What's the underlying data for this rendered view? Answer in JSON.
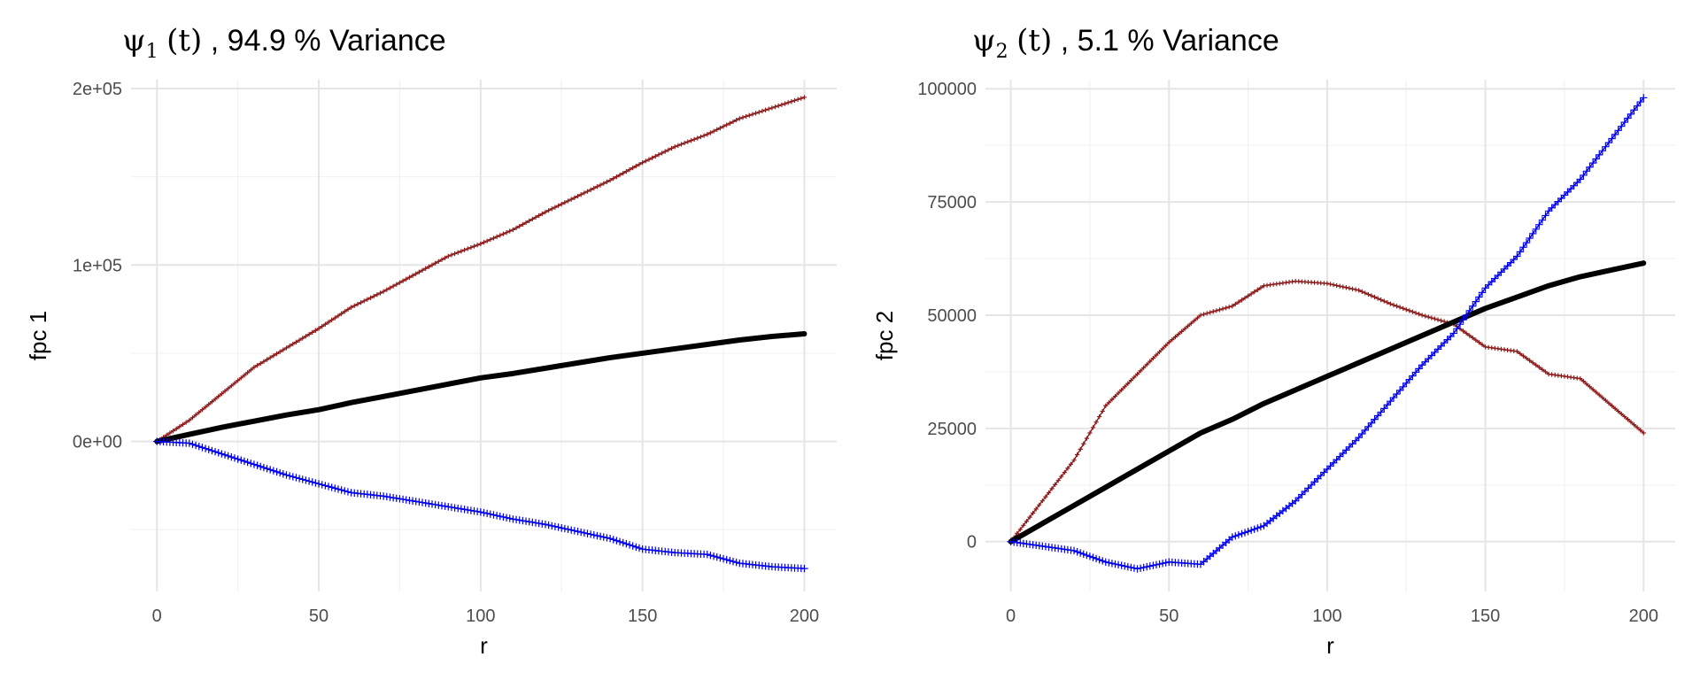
{
  "chart_data": [
    {
      "type": "line",
      "title": {
        "symbol": "ψ",
        "subscript": "1",
        "arg": "(t)",
        "suffix": ", 94.9 % Variance"
      },
      "xlabel": "r",
      "ylabel": "fpc 1",
      "xlim": [
        -8,
        210
      ],
      "ylim": [
        -85000,
        205000
      ],
      "x_ticks": [
        0,
        50,
        100,
        150,
        200
      ],
      "x_tick_labels": [
        "0",
        "50",
        "100",
        "150",
        "200"
      ],
      "y_ticks": [
        0,
        100000,
        200000
      ],
      "y_tick_labels": [
        "0e+00",
        "1e+05",
        "2e+05"
      ],
      "grid": true,
      "legend": "none",
      "series": [
        {
          "color": "#8b1a1a",
          "style": "plus-markers",
          "x": [
            0,
            10,
            20,
            30,
            40,
            50,
            60,
            70,
            80,
            90,
            100,
            110,
            120,
            130,
            140,
            150,
            160,
            170,
            180,
            190,
            200
          ],
          "values": [
            0,
            12000,
            27000,
            42000,
            53000,
            64000,
            76000,
            85000,
            95000,
            105000,
            112000,
            120000,
            130000,
            139000,
            148000,
            158000,
            167000,
            174000,
            183000,
            189000,
            195000
          ]
        },
        {
          "color": "#000000",
          "style": "thick-line",
          "x": [
            0,
            10,
            20,
            30,
            40,
            50,
            60,
            70,
            80,
            90,
            100,
            110,
            120,
            130,
            140,
            150,
            160,
            170,
            180,
            190,
            200
          ],
          "values": [
            0,
            4000,
            8000,
            11500,
            15000,
            18000,
            22000,
            25500,
            29000,
            32500,
            36000,
            38500,
            41500,
            44500,
            47500,
            50000,
            52500,
            55000,
            57500,
            59500,
            61000
          ]
        },
        {
          "color": "#0000ee",
          "style": "plus-markers",
          "x": [
            0,
            10,
            20,
            30,
            40,
            50,
            60,
            70,
            80,
            90,
            100,
            110,
            120,
            130,
            140,
            150,
            160,
            170,
            180,
            190,
            200
          ],
          "values": [
            0,
            -1000,
            -7000,
            -13000,
            -19000,
            -24000,
            -29000,
            -31000,
            -34000,
            -37000,
            -40000,
            -44000,
            -47000,
            -51000,
            -55000,
            -61000,
            -63000,
            -64000,
            -69000,
            -71000,
            -72000
          ]
        }
      ]
    },
    {
      "type": "line",
      "title": {
        "symbol": "ψ",
        "subscript": "2",
        "arg": "(t)",
        "suffix": ", 5.1 % Variance"
      },
      "xlabel": "r",
      "ylabel": "fpc 2",
      "xlim": [
        -8,
        210
      ],
      "ylim": [
        -11000,
        102000
      ],
      "x_ticks": [
        0,
        50,
        100,
        150,
        200
      ],
      "x_tick_labels": [
        "0",
        "50",
        "100",
        "150",
        "200"
      ],
      "y_ticks": [
        0,
        25000,
        50000,
        75000,
        100000
      ],
      "y_tick_labels": [
        "0",
        "25000",
        "50000",
        "75000",
        "100000"
      ],
      "grid": true,
      "legend": "none",
      "series": [
        {
          "color": "#8b1a1a",
          "style": "plus-markers",
          "x": [
            0,
            10,
            20,
            30,
            40,
            50,
            60,
            70,
            80,
            90,
            100,
            110,
            120,
            130,
            140,
            150,
            160,
            170,
            180,
            190,
            200
          ],
          "values": [
            0,
            9000,
            18000,
            30000,
            37000,
            44000,
            50000,
            52000,
            56500,
            57500,
            57000,
            55500,
            52500,
            50000,
            48000,
            43000,
            42000,
            37000,
            36000,
            30000,
            24000
          ]
        },
        {
          "color": "#000000",
          "style": "thick-line",
          "x": [
            0,
            10,
            20,
            30,
            40,
            50,
            60,
            70,
            80,
            90,
            100,
            110,
            120,
            130,
            140,
            150,
            160,
            170,
            180,
            190,
            200
          ],
          "values": [
            0,
            4000,
            8000,
            12000,
            16000,
            20000,
            24000,
            27000,
            30500,
            33500,
            36500,
            39500,
            42500,
            45500,
            48500,
            51500,
            54000,
            56500,
            58500,
            60000,
            61500
          ]
        },
        {
          "color": "#0000ee",
          "style": "plus-markers",
          "x": [
            0,
            10,
            20,
            30,
            40,
            50,
            60,
            70,
            80,
            90,
            100,
            110,
            120,
            130,
            140,
            150,
            160,
            170,
            180,
            190,
            200
          ],
          "values": [
            0,
            -1000,
            -2000,
            -4500,
            -6000,
            -4500,
            -5000,
            1000,
            3500,
            9000,
            16000,
            23000,
            31000,
            39000,
            46000,
            56000,
            63000,
            73000,
            80000,
            89000,
            98000
          ]
        }
      ]
    }
  ]
}
